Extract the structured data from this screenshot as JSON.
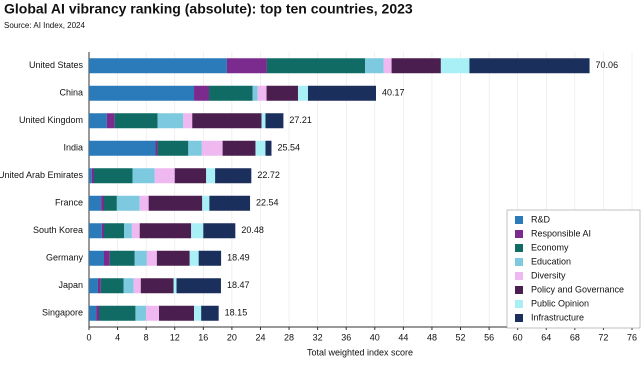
{
  "chart_data": {
    "type": "stacked_bar_horizontal",
    "title": "Global AI vibrancy ranking (absolute): top ten countries, 2023",
    "subtitle": "Source: AI Index, 2024",
    "x_label": "Total weighted index score",
    "categories": [
      "United States",
      "China",
      "United Kingdom",
      "India",
      "United Arab Emirates",
      "France",
      "South Korea",
      "Germany",
      "Japan",
      "Singapore"
    ],
    "series": [
      {
        "name": "R&D",
        "color": "#2b7bba",
        "values": [
          19.3,
          14.7,
          2.5,
          9.3,
          0.4,
          1.7,
          1.8,
          2.1,
          1.25,
          1.0
        ]
      },
      {
        "name": "Responsible AI",
        "color": "#7b2a8e",
        "values": [
          5.6,
          2.1,
          1.1,
          0.3,
          0.3,
          0.4,
          0.3,
          0.8,
          0.4,
          0.4
        ]
      },
      {
        "name": "Economy",
        "color": "#0f6b63",
        "values": [
          13.75,
          6.1,
          6.0,
          4.3,
          5.4,
          1.8,
          2.8,
          3.5,
          3.2,
          5.1
        ]
      },
      {
        "name": "Education",
        "color": "#7cc9e0",
        "values": [
          2.6,
          0.7,
          3.6,
          1.9,
          3.1,
          3.2,
          1.1,
          1.7,
          1.4,
          1.5
        ]
      },
      {
        "name": "Diversity",
        "color": "#f0b8f0",
        "values": [
          1.1,
          1.25,
          1.25,
          2.9,
          2.8,
          1.25,
          1.1,
          1.4,
          1.0,
          1.8
        ]
      },
      {
        "name": "Policy and Governance",
        "color": "#4a1f4f",
        "values": [
          6.9,
          4.4,
          9.7,
          4.6,
          4.4,
          7.5,
          7.2,
          4.6,
          4.6,
          4.9
        ]
      },
      {
        "name": "Public Opinion",
        "color": "#a8f0f5",
        "values": [
          4.0,
          1.4,
          0.55,
          1.4,
          1.25,
          1.0,
          1.7,
          1.25,
          0.4,
          1.0
        ]
      },
      {
        "name": "Infrastructure",
        "color": "#1a2f5c",
        "values": [
          16.81,
          9.52,
          2.51,
          0.84,
          5.07,
          5.69,
          4.48,
          3.14,
          6.22,
          2.45
        ]
      }
    ],
    "totals": [
      70.06,
      40.17,
      27.21,
      25.54,
      22.72,
      22.54,
      20.48,
      18.49,
      18.47,
      18.15
    ],
    "xlim": [
      0,
      76
    ],
    "xticks": [
      0,
      4,
      8,
      12,
      16,
      20,
      24,
      28,
      32,
      36,
      40,
      44,
      48,
      52,
      56,
      60,
      64,
      68,
      72,
      76
    ],
    "grid": true,
    "legend_position": "lower right"
  }
}
